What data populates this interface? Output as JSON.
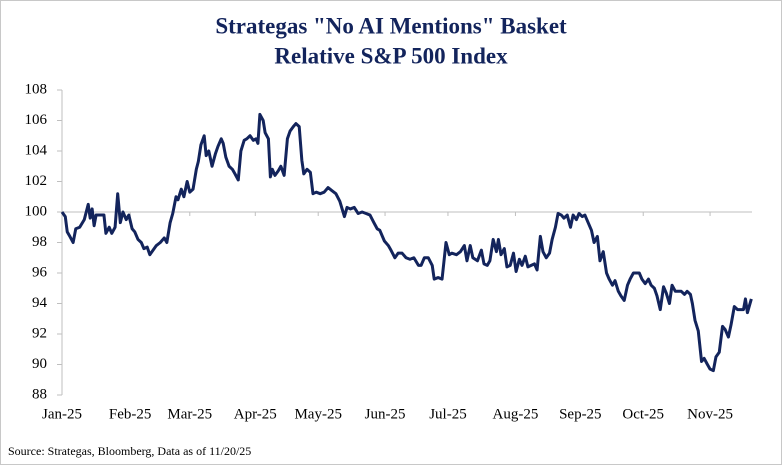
{
  "chart_data": {
    "type": "line",
    "title": [
      "Strategas \"No AI Mentions\" Basket",
      "Relative S&P 500 Index"
    ],
    "source": "Source: Strategas, Bloomberg, Data as of 11/20/25",
    "x": [
      0,
      0.05,
      0.08,
      0.12,
      0.17,
      0.21,
      0.27,
      0.34,
      0.4,
      0.43,
      0.46,
      0.49,
      0.52,
      0.58,
      0.64,
      0.67,
      0.72,
      0.76,
      0.81,
      0.85,
      0.89,
      0.93,
      0.98,
      1.02,
      1.07,
      1.11,
      1.16,
      1.21,
      1.25,
      1.3,
      1.34,
      1.39,
      1.44,
      1.5,
      1.56,
      1.6,
      1.65,
      1.69,
      1.74,
      1.77,
      1.82,
      1.86,
      1.91,
      1.95,
      2.0,
      2.05,
      2.08,
      2.12,
      2.17,
      2.2,
      2.24,
      2.29,
      2.34,
      2.38,
      2.43,
      2.46,
      2.5,
      2.55,
      2.6,
      2.64,
      2.69,
      2.73,
      2.78,
      2.82,
      2.87,
      2.92,
      2.96,
      2.99,
      3.02,
      3.07,
      3.1,
      3.15,
      3.18,
      3.21,
      3.25,
      3.3,
      3.34,
      3.39,
      3.44,
      3.48,
      3.53,
      3.57,
      3.62,
      3.66,
      3.69,
      3.74,
      3.79,
      3.83,
      3.88,
      3.94,
      4.0,
      4.06,
      4.12,
      4.18,
      4.24,
      4.31,
      4.35,
      4.4,
      4.46,
      4.52,
      4.58,
      4.64,
      4.7,
      4.76,
      4.81,
      4.85,
      4.92,
      4.98,
      5.02,
      5.08,
      5.13,
      5.19,
      5.25,
      5.31,
      5.37,
      5.44,
      5.48,
      5.53,
      5.59,
      5.65,
      5.68,
      5.74,
      5.8,
      5.86,
      5.91,
      5.95,
      6.02,
      6.08,
      6.14,
      6.18,
      6.23,
      6.27,
      6.34,
      6.4,
      6.44,
      6.49,
      6.53,
      6.58,
      6.63,
      6.66,
      6.7,
      6.75,
      6.79,
      6.84,
      6.89,
      6.93,
      6.98,
      7.02,
      7.07,
      7.11,
      7.16,
      7.21,
      7.25,
      7.3,
      7.34,
      7.39,
      7.44,
      7.48,
      7.53,
      7.57,
      7.62,
      7.66,
      7.71,
      7.76,
      7.8,
      7.85,
      7.89,
      7.94,
      7.98,
      8.03,
      8.08,
      8.12,
      8.17,
      8.21,
      8.26,
      8.31,
      8.35,
      8.4,
      8.44,
      8.49,
      8.53,
      8.58,
      8.63,
      8.67,
      8.72,
      8.76,
      8.81,
      8.85,
      8.9,
      8.95,
      8.99,
      9.04,
      9.08,
      9.13,
      9.18,
      9.22,
      9.27,
      9.31,
      9.36,
      9.4,
      9.45,
      9.5,
      9.54,
      9.59,
      9.62,
      9.66,
      9.71,
      9.76,
      9.8,
      9.85,
      9.89,
      9.94,
      9.98,
      10.03,
      10.08,
      10.12,
      10.17,
      10.21,
      10.26,
      10.31,
      10.35,
      10.4,
      10.43,
      10.46,
      10.52
    ],
    "series": [
      {
        "color": "#13245c",
        "values": [
          100,
          99.7,
          98.7,
          98.4,
          98.0,
          98.9,
          99.0,
          99.5,
          100.5,
          99.6,
          100.2,
          99.1,
          99.8,
          99.8,
          99.8,
          98.6,
          99.0,
          98.6,
          99.0,
          101.2,
          99.3,
          100.0,
          99.5,
          99.8,
          98.9,
          98.7,
          98.2,
          98.0,
          97.6,
          97.7,
          97.2,
          97.5,
          97.8,
          98.0,
          98.3,
          98.0,
          99.3,
          99.9,
          101.0,
          100.8,
          101.5,
          101.0,
          102.0,
          101.3,
          101.5,
          102.8,
          103.3,
          104.4,
          105.0,
          103.7,
          104.0,
          103.0,
          103.8,
          104.3,
          104.8,
          104.5,
          103.6,
          103.0,
          102.8,
          102.5,
          102.1,
          104.0,
          104.7,
          104.8,
          105.0,
          104.7,
          104.8,
          104.5,
          106.4,
          106.0,
          105.2,
          104.8,
          102.3,
          102.8,
          102.4,
          102.7,
          103.0,
          102.4,
          104.8,
          105.3,
          105.6,
          105.8,
          105.6,
          103.4,
          102.5,
          102.8,
          102.6,
          101.2,
          101.3,
          101.2,
          101.3,
          101.6,
          101.4,
          101.2,
          100.7,
          99.7,
          100.3,
          100.2,
          100.3,
          99.9,
          100.0,
          99.9,
          99.8,
          99.3,
          98.9,
          98.8,
          98.1,
          97.8,
          97.5,
          97.0,
          97.3,
          97.3,
          97.0,
          96.9,
          97.0,
          96.5,
          96.5,
          97.0,
          97.0,
          96.5,
          95.6,
          95.7,
          95.6,
          98.0,
          97.2,
          97.3,
          97.2,
          97.4,
          97.8,
          96.8,
          97.8,
          97.0,
          96.8,
          97.5,
          96.6,
          96.5,
          96.8,
          98.2,
          97.4,
          98.2,
          97.2,
          97.6,
          96.4,
          96.5,
          97.3,
          96.1,
          96.9,
          96.5,
          97.1,
          96.4,
          96.5,
          96.6,
          96.2,
          98.4,
          97.4,
          97.0,
          97.3,
          98.2,
          99.0,
          99.9,
          99.8,
          99.6,
          99.8,
          99.0,
          99.8,
          99.5,
          99.9,
          99.7,
          99.8,
          99.3,
          98.8,
          98.0,
          98.4,
          96.8,
          97.4,
          96.0,
          95.6,
          95.2,
          95.5,
          94.8,
          94.5,
          94.2,
          95.2,
          95.6,
          96.0,
          96.0,
          96.0,
          95.6,
          95.3,
          95.6,
          95.2,
          95.0,
          94.5,
          93.6,
          95.1,
          94.7,
          94.0,
          95.2,
          94.8,
          94.8,
          94.8,
          94.6,
          94.8,
          94.6,
          94.0,
          92.9,
          92.2,
          90.2,
          90.4,
          90.0,
          89.7,
          89.6,
          90.5,
          90.8,
          92.5,
          92.3,
          91.8,
          92.6,
          93.8,
          93.6,
          93.6,
          93.6,
          94.3,
          93.4,
          94.3
        ]
      }
    ],
    "xlim": [
      0,
      10.53
    ],
    "xticks": [
      {
        "value": 0,
        "label": "Jan-25"
      },
      {
        "value": 1.04,
        "label": "Feb-25"
      },
      {
        "value": 1.95,
        "label": "Mar-25"
      },
      {
        "value": 2.95,
        "label": "Apr-25"
      },
      {
        "value": 3.91,
        "label": "May-25"
      },
      {
        "value": 4.93,
        "label": "Jun-25"
      },
      {
        "value": 5.89,
        "label": "Jul-25"
      },
      {
        "value": 6.92,
        "label": "Aug-25"
      },
      {
        "value": 7.91,
        "label": "Sep-25"
      },
      {
        "value": 8.87,
        "label": "Oct-25"
      },
      {
        "value": 9.89,
        "label": "Nov-25"
      }
    ],
    "ylim": [
      88,
      108
    ],
    "yticks": [
      88,
      90,
      92,
      94,
      96,
      98,
      100,
      102,
      104,
      106,
      108
    ],
    "x_axis_crossing": 100,
    "grid": false
  }
}
